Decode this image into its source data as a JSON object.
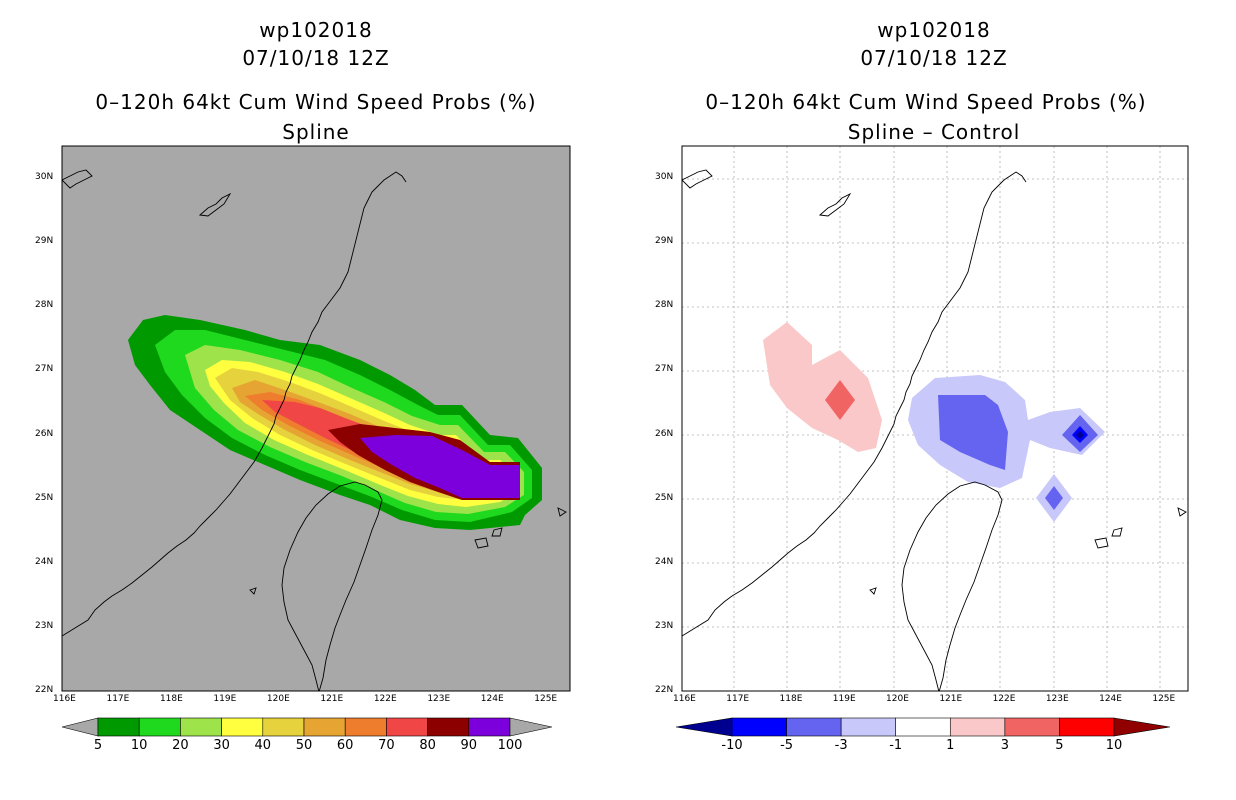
{
  "left_panel": {
    "storm_id": "wp102018",
    "datetime": "07/10/18 12Z",
    "product": "0–120h 64kt Cum Wind Speed Probs (%)",
    "subtitle": "Spline",
    "background_color": "#a8a8a8",
    "colorbar": {
      "labels": [
        "5",
        "10",
        "20",
        "30",
        "40",
        "50",
        "60",
        "70",
        "80",
        "90",
        "100"
      ],
      "colors": [
        "#009a00",
        "#1fd91f",
        "#9fe34a",
        "#ffff40",
        "#e6d23c",
        "#e6a532",
        "#ee7d2d",
        "#f04646",
        "#8c0000",
        "#7b00dc"
      ]
    }
  },
  "right_panel": {
    "storm_id": "wp102018",
    "datetime": "07/10/18 12Z",
    "product": "0–120h 64kt Cum Wind Speed Probs (%)",
    "subtitle": "Spline – Control",
    "background_color": "#ffffff",
    "colorbar": {
      "labels": [
        "-10",
        "-5",
        "-3",
        "-1",
        "1",
        "3",
        "5",
        "10"
      ],
      "colors": [
        "#000090",
        "#0000ff",
        "#6464f0",
        "#c8c8fa",
        "#ffffff",
        "#fac8c8",
        "#f06464",
        "#ff0000",
        "#900000"
      ]
    }
  },
  "axes": {
    "x_ticks": [
      "116E",
      "117E",
      "118E",
      "119E",
      "120E",
      "121E",
      "122E",
      "123E",
      "124E",
      "125E"
    ],
    "y_ticks": [
      "22N",
      "23N",
      "24N",
      "25N",
      "26N",
      "27N",
      "28N",
      "29N",
      "30N"
    ],
    "xlim": [
      116,
      125.5
    ],
    "ylim": [
      22,
      30.5
    ]
  }
}
